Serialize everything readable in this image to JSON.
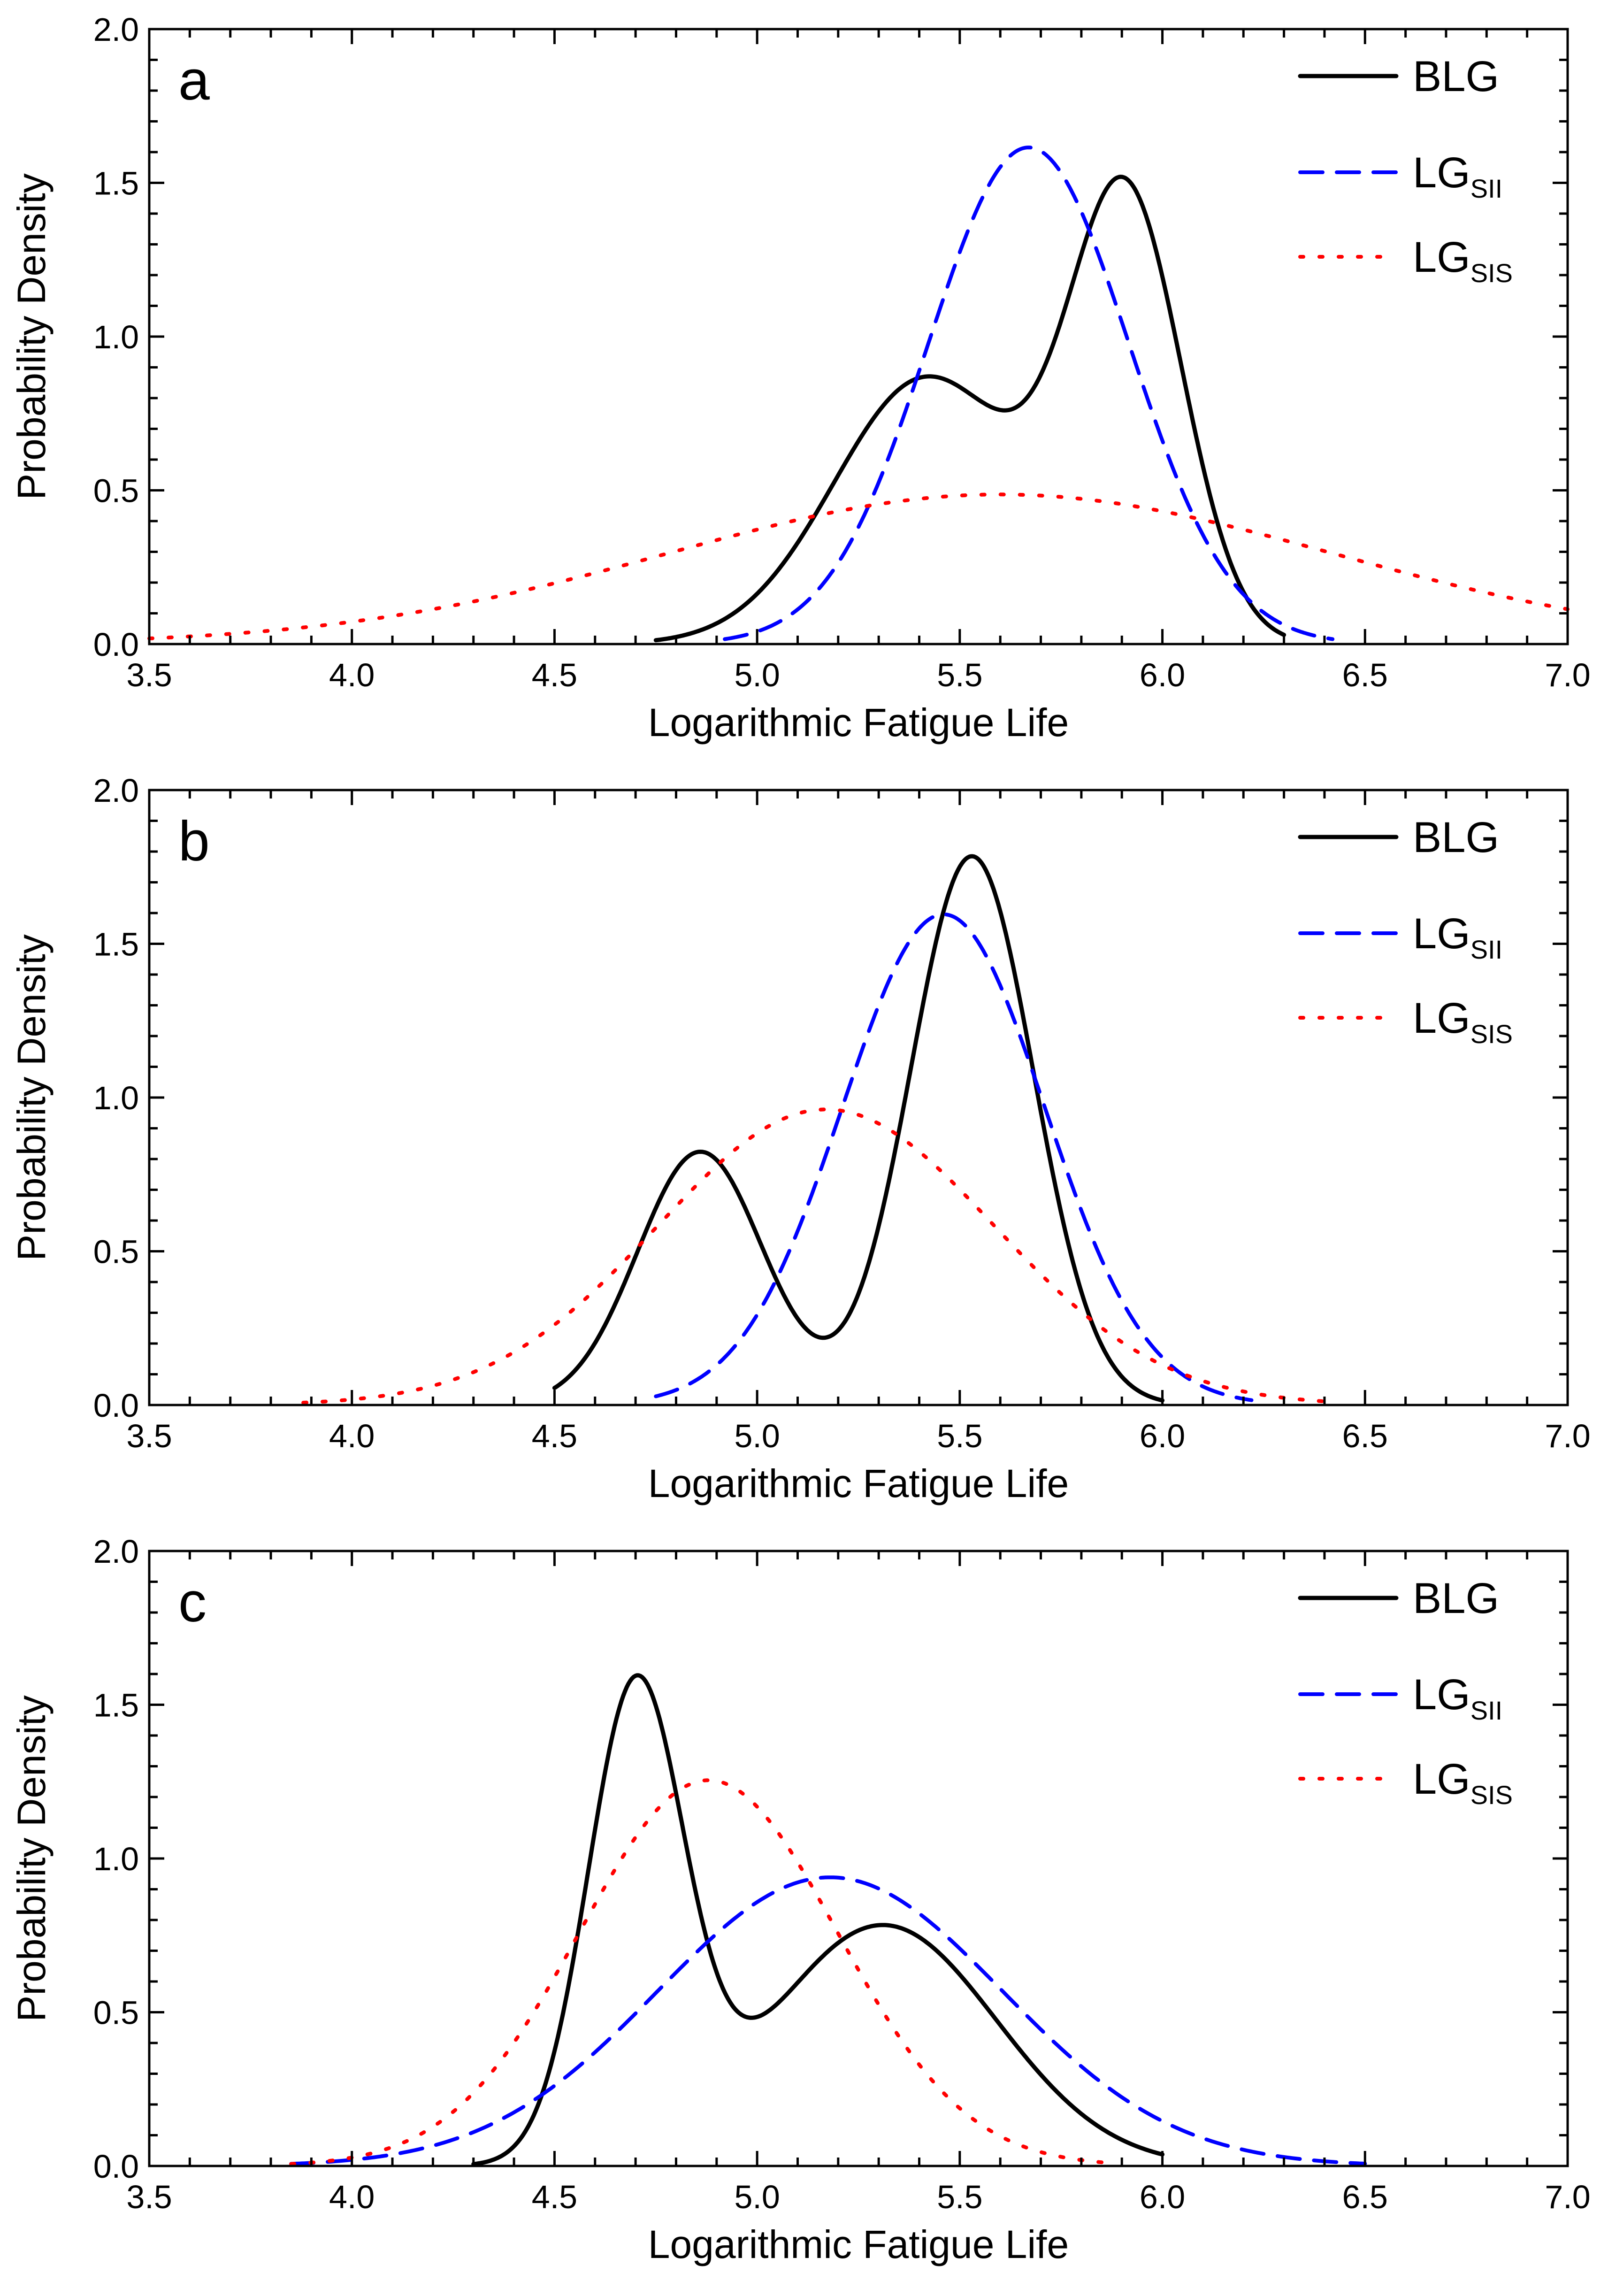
{
  "figure": {
    "background": "#ffffff"
  },
  "chart_data": [
    {
      "type": "line",
      "panel": "a",
      "xlabel": "Logarithmic Fatigue Life",
      "ylabel": "Probability Density",
      "xlim": [
        3.5,
        7.0
      ],
      "ylim": [
        0.0,
        2.0
      ],
      "xticks": [
        "3.5",
        "4.0",
        "4.5",
        "5.0",
        "5.5",
        "6.0",
        "6.5",
        "7.0"
      ],
      "yticks": [
        "0.0",
        "0.5",
        "1.0",
        "1.5",
        "2.0"
      ],
      "legend_position": "top-right",
      "series": [
        {
          "name": "BLG",
          "sub": "",
          "style": "solid",
          "color": "#000000",
          "components": [
            {
              "w": 0.5,
              "mu": 5.42,
              "sigma": 0.23
            },
            {
              "w": 0.5,
              "mu": 5.91,
              "sigma": 0.14
            }
          ],
          "x_range": [
            4.75,
            6.3
          ]
        },
        {
          "name": "LG",
          "sub": "SII",
          "style": "dashed",
          "color": "#0000ff",
          "components": [
            {
              "w": 1,
              "mu": 5.67,
              "sigma": 0.247
            }
          ],
          "x_range": [
            4.92,
            6.42
          ]
        },
        {
          "name": "LG",
          "sub": "SIS",
          "style": "dotted",
          "color": "#ff0000",
          "components": [
            {
              "w": 1,
              "mu": 5.6,
              "sigma": 0.82
            }
          ],
          "x_range": [
            3.5,
            7.0
          ]
        }
      ]
    },
    {
      "type": "line",
      "panel": "b",
      "xlabel": "Logarithmic Fatigue Life",
      "ylabel": "Probability Density",
      "xlim": [
        3.5,
        7.0
      ],
      "ylim": [
        0.0,
        2.0
      ],
      "xticks": [
        "3.5",
        "4.0",
        "4.5",
        "5.0",
        "5.5",
        "6.0",
        "6.5",
        "7.0"
      ],
      "yticks": [
        "0.0",
        "0.5",
        "1.0",
        "1.5",
        "2.0"
      ],
      "legend_position": "top-right",
      "series": [
        {
          "name": "BLG",
          "sub": "",
          "style": "solid",
          "color": "#000000",
          "components": [
            {
              "w": 0.32,
              "mu": 4.86,
              "sigma": 0.155
            },
            {
              "w": 0.68,
              "mu": 5.53,
              "sigma": 0.152
            }
          ],
          "x_range": [
            4.5,
            6.0
          ]
        },
        {
          "name": "LG",
          "sub": "SII",
          "style": "dashed",
          "color": "#0000ff",
          "components": [
            {
              "w": 1,
              "mu": 5.46,
              "sigma": 0.25
            }
          ],
          "x_range": [
            4.75,
            6.22
          ]
        },
        {
          "name": "LG",
          "sub": "SIS",
          "style": "dotted",
          "color": "#ff0000",
          "components": [
            {
              "w": 1,
              "mu": 5.17,
              "sigma": 0.415
            }
          ],
          "x_range": [
            3.88,
            6.4
          ]
        }
      ]
    },
    {
      "type": "line",
      "panel": "c",
      "xlabel": "Logarithmic Fatigue Life",
      "ylabel": "Probability Density",
      "xlim": [
        3.5,
        7.0
      ],
      "ylim": [
        0.0,
        2.0
      ],
      "xticks": [
        "3.5",
        "4.0",
        "4.5",
        "5.0",
        "5.5",
        "6.0",
        "6.5",
        "7.0"
      ],
      "yticks": [
        "0.0",
        "0.5",
        "1.0",
        "1.5",
        "2.0"
      ],
      "legend_position": "top-right",
      "series": [
        {
          "name": "BLG",
          "sub": "",
          "style": "solid",
          "color": "#000000",
          "components": [
            {
              "w": 0.45,
              "mu": 4.7,
              "sigma": 0.118
            },
            {
              "w": 0.55,
              "mu": 5.31,
              "sigma": 0.28
            }
          ],
          "x_range": [
            4.3,
            6.0
          ]
        },
        {
          "name": "LG",
          "sub": "SII",
          "style": "dashed",
          "color": "#0000ff",
          "components": [
            {
              "w": 1,
              "mu": 5.18,
              "sigma": 0.425
            }
          ],
          "x_range": [
            3.85,
            6.5
          ]
        },
        {
          "name": "LG",
          "sub": "SIS",
          "style": "dotted",
          "color": "#ff0000",
          "components": [
            {
              "w": 1,
              "mu": 4.88,
              "sigma": 0.318
            }
          ],
          "x_range": [
            3.85,
            5.85
          ]
        }
      ]
    }
  ]
}
